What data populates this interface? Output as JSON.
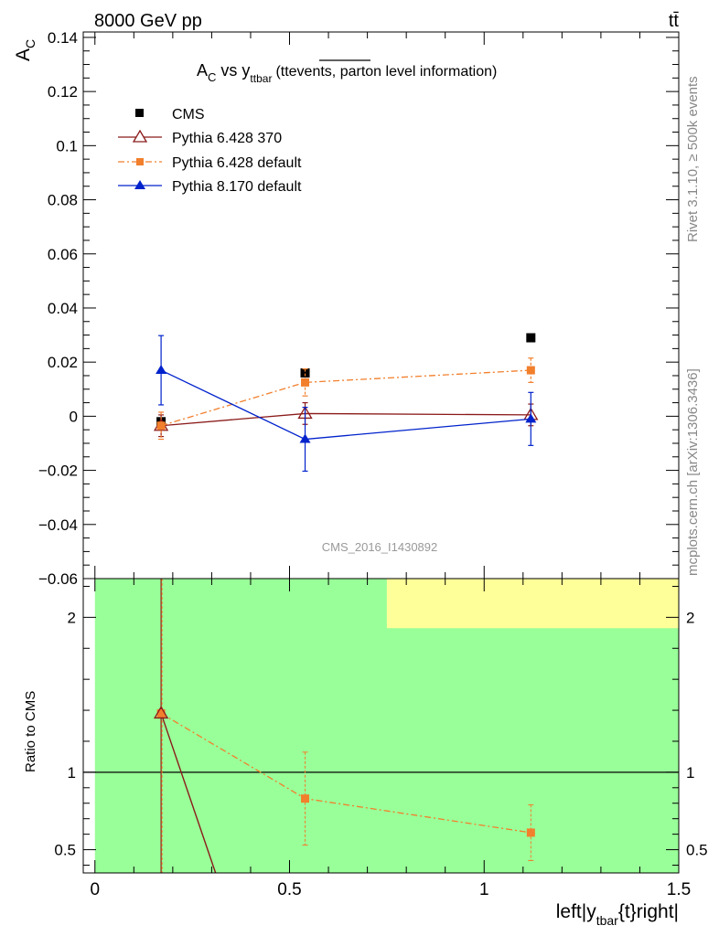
{
  "header": {
    "energy_label": "8000 GeV pp",
    "process_label": "tt̄"
  },
  "side_labels": {
    "rivet": "Rivet 3.1.10, ≥ 500k events",
    "mcplots": "mcplots.cern.ch [arXiv:1306.3436]"
  },
  "watermark": "CMS_2016_I1430892",
  "colors": {
    "cms": "#000000",
    "p6_370": "#8b1a1a",
    "p6_default": "#f27f2c",
    "p8_default": "#0022cc",
    "band_green": "#99ff99",
    "band_yellow": "#ffff99"
  },
  "chart_data": [
    {
      "type": "scatter",
      "title_main": "A",
      "title_main_sub": "C",
      "title_vs": " vs y",
      "title_vs_sub": "ttbar",
      "title_paren_open": "(tt",
      "title_overline": "events,",
      "title_rest": " parton level information)",
      "ylabel": "A",
      "ylabel_sub": "C",
      "xlim": [
        -0.03,
        1.5
      ],
      "ylim": [
        -0.06,
        0.142
      ],
      "y_ticks": [
        -0.06,
        -0.04,
        -0.02,
        0,
        0.02,
        0.04,
        0.06,
        0.08,
        0.1,
        0.12,
        0.14
      ],
      "y_tick_labels": [
        "−0.06",
        "−0.04",
        "−0.02",
        "0",
        "0.02",
        "0.04",
        "0.06",
        "0.08",
        "0.1",
        "0.12",
        "0.14"
      ],
      "legend_position": "top-left",
      "series": [
        {
          "name": "CMS",
          "style": "marker",
          "x": [
            0.17,
            0.54,
            1.12
          ],
          "y": [
            -0.002,
            0.016,
            0.029
          ],
          "yerr": [
            0.0,
            0.0,
            0.0
          ]
        },
        {
          "name": "Pythia 6.428 370",
          "style": "line",
          "x": [
            0.17,
            0.54,
            1.12
          ],
          "y": [
            -0.0035,
            0.001,
            0.0005
          ],
          "yerr": [
            0.004,
            0.004,
            0.004
          ]
        },
        {
          "name": "Pythia 6.428 default",
          "style": "dashdot",
          "x": [
            0.17,
            0.54,
            1.12
          ],
          "y": [
            -0.0035,
            0.0125,
            0.017
          ],
          "yerr": [
            0.005,
            0.005,
            0.0045
          ]
        },
        {
          "name": "Pythia 8.170 default",
          "style": "line",
          "x": [
            0.17,
            0.54,
            1.12
          ],
          "y": [
            0.017,
            -0.0085,
            -0.001
          ],
          "yerr": [
            0.0128,
            0.0118,
            0.0098
          ]
        }
      ]
    },
    {
      "type": "line",
      "ylabel": "Ratio to CMS",
      "xlabel": "left|y",
      "xlabel_sub": "tbar",
      "xlabel_rest": "{t}right|",
      "xlim": [
        -0.03,
        1.5
      ],
      "ylim": [
        0.35,
        2.25
      ],
      "x_ticks": [
        0,
        0.5,
        1,
        1.5
      ],
      "x_tick_labels": [
        "0",
        "0.5",
        "1",
        "1.5"
      ],
      "y_ticks": [
        0.5,
        1,
        2
      ],
      "y_tick_labels": [
        "0.5",
        "1",
        "2"
      ],
      "band_green": {
        "x": [
          0.0,
          1.5
        ],
        "y": [
          0.35,
          2.25
        ]
      },
      "band_yellow": {
        "x": [
          0.75,
          1.5
        ],
        "y": [
          1.93,
          2.25
        ]
      },
      "series": [
        {
          "name": "Pythia 6.428 370",
          "x": [
            0.17,
            0.31
          ],
          "y": [
            1.38,
            0.35
          ]
        },
        {
          "name": "Pythia 6.428 default",
          "x": [
            0.17,
            0.54,
            1.12
          ],
          "y": [
            1.38,
            0.83,
            0.61
          ],
          "yerr": [
            0.0,
            0.3,
            0.18
          ]
        }
      ]
    }
  ]
}
